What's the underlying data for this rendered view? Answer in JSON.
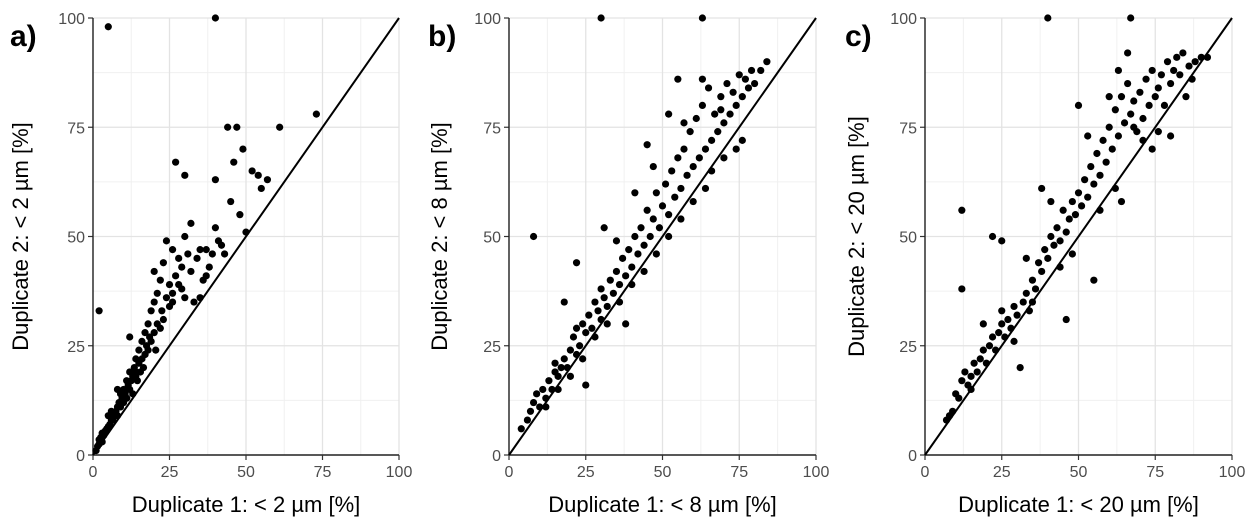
{
  "chart_data": [
    {
      "type": "scatter",
      "panel_label": "a)",
      "xlabel": "Duplicate 1: < 2 µm [%]",
      "ylabel": "Duplicate 2: < 2 µm [%]",
      "xlim": [
        0,
        100
      ],
      "ylim": [
        0,
        100
      ],
      "xticks": [
        "0",
        "25",
        "50",
        "75",
        "100"
      ],
      "yticks": [
        "0",
        "25",
        "50",
        "75",
        "100"
      ],
      "grid": true,
      "reference_line": "1:1",
      "points": [
        [
          1,
          1
        ],
        [
          1.5,
          2
        ],
        [
          2,
          2.5
        ],
        [
          2,
          3.5
        ],
        [
          2.5,
          4
        ],
        [
          3,
          3
        ],
        [
          3,
          5
        ],
        [
          3.5,
          4.5
        ],
        [
          4,
          5.5
        ],
        [
          4.5,
          6
        ],
        [
          5,
          6.5
        ],
        [
          5,
          9
        ],
        [
          5.5,
          7
        ],
        [
          6,
          8
        ],
        [
          6.5,
          8
        ],
        [
          7,
          9
        ],
        [
          7.5,
          10
        ],
        [
          8,
          11
        ],
        [
          8,
          9
        ],
        [
          8.5,
          12
        ],
        [
          9,
          11
        ],
        [
          9.5,
          13
        ],
        [
          10,
          12
        ],
        [
          10,
          15
        ],
        [
          10.5,
          14
        ],
        [
          11,
          13
        ],
        [
          11,
          17
        ],
        [
          11.5,
          16
        ],
        [
          12,
          15
        ],
        [
          12,
          19
        ],
        [
          12.5,
          17
        ],
        [
          13,
          18
        ],
        [
          13,
          14
        ],
        [
          13.5,
          20
        ],
        [
          14,
          19
        ],
        [
          14,
          22
        ],
        [
          14.5,
          17
        ],
        [
          15,
          21
        ],
        [
          15,
          24
        ],
        [
          15.5,
          19
        ],
        [
          16,
          22
        ],
        [
          16,
          26
        ],
        [
          16.5,
          20
        ],
        [
          17,
          23
        ],
        [
          17,
          28
        ],
        [
          17.5,
          25
        ],
        [
          18,
          24
        ],
        [
          18,
          30
        ],
        [
          18.5,
          27
        ],
        [
          19,
          26
        ],
        [
          19,
          33
        ],
        [
          20,
          28
        ],
        [
          20,
          35
        ],
        [
          20.5,
          24
        ],
        [
          21,
          30
        ],
        [
          21,
          37
        ],
        [
          22,
          29
        ],
        [
          22,
          40
        ],
        [
          22.5,
          33
        ],
        [
          23,
          31
        ],
        [
          23,
          44
        ],
        [
          24,
          36
        ],
        [
          24,
          49
        ],
        [
          25,
          34
        ],
        [
          25,
          39
        ],
        [
          26,
          37
        ],
        [
          26,
          47
        ],
        [
          27,
          41
        ],
        [
          28,
          39
        ],
        [
          28,
          45
        ],
        [
          29,
          43
        ],
        [
          30,
          36
        ],
        [
          30,
          50
        ],
        [
          31,
          46
        ],
        [
          32,
          42
        ],
        [
          33,
          35
        ],
        [
          34,
          45
        ],
        [
          35,
          47
        ],
        [
          36,
          40
        ],
        [
          37,
          47
        ],
        [
          38,
          43
        ],
        [
          39,
          46
        ],
        [
          40,
          52
        ],
        [
          41,
          49
        ],
        [
          42,
          48
        ],
        [
          43,
          46
        ],
        [
          45,
          58
        ],
        [
          46,
          67
        ],
        [
          48,
          55
        ],
        [
          50,
          51
        ],
        [
          52,
          65
        ],
        [
          54,
          64
        ],
        [
          55,
          61
        ],
        [
          57,
          63
        ],
        [
          61,
          75
        ],
        [
          73,
          78
        ],
        [
          47,
          75
        ],
        [
          49,
          70
        ],
        [
          44,
          75
        ],
        [
          40,
          63
        ],
        [
          30,
          64
        ],
        [
          27,
          67
        ],
        [
          32,
          53
        ],
        [
          20,
          42
        ],
        [
          2,
          33
        ],
        [
          5,
          98
        ],
        [
          40,
          100
        ],
        [
          12,
          27
        ],
        [
          8,
          15
        ],
        [
          6,
          10
        ],
        [
          9,
          14
        ],
        [
          35,
          36
        ],
        [
          37,
          41
        ],
        [
          26,
          35
        ],
        [
          29,
          38
        ],
        [
          17,
          23
        ],
        [
          14,
          18
        ],
        [
          11,
          13
        ]
      ]
    },
    {
      "type": "scatter",
      "panel_label": "b)",
      "xlabel": "Duplicate 1: < 8 µm [%]",
      "ylabel": "Duplicate 2: < 8 µm [%]",
      "xlim": [
        0,
        100
      ],
      "ylim": [
        0,
        100
      ],
      "xticks": [
        "0",
        "25",
        "50",
        "75",
        "100"
      ],
      "yticks": [
        "0",
        "25",
        "50",
        "75",
        "100"
      ],
      "grid": true,
      "reference_line": "1:1",
      "points": [
        [
          4,
          6
        ],
        [
          6,
          8
        ],
        [
          7,
          10
        ],
        [
          8,
          12
        ],
        [
          9,
          14
        ],
        [
          10,
          11
        ],
        [
          11,
          15
        ],
        [
          12,
          13
        ],
        [
          13,
          17
        ],
        [
          14,
          15
        ],
        [
          15,
          19
        ],
        [
          15,
          21
        ],
        [
          16,
          18
        ],
        [
          17,
          20
        ],
        [
          18,
          22
        ],
        [
          19,
          20
        ],
        [
          20,
          24
        ],
        [
          21,
          27
        ],
        [
          22,
          23
        ],
        [
          22,
          29
        ],
        [
          23,
          25
        ],
        [
          24,
          30
        ],
        [
          25,
          28
        ],
        [
          25,
          16
        ],
        [
          26,
          32
        ],
        [
          27,
          29
        ],
        [
          28,
          35
        ],
        [
          29,
          33
        ],
        [
          30,
          38
        ],
        [
          30,
          31
        ],
        [
          31,
          36
        ],
        [
          32,
          34
        ],
        [
          33,
          40
        ],
        [
          34,
          37
        ],
        [
          35,
          42
        ],
        [
          36,
          39
        ],
        [
          37,
          45
        ],
        [
          38,
          41
        ],
        [
          38,
          30
        ],
        [
          39,
          47
        ],
        [
          40,
          43
        ],
        [
          41,
          50
        ],
        [
          42,
          46
        ],
        [
          43,
          52
        ],
        [
          44,
          48
        ],
        [
          45,
          56
        ],
        [
          46,
          50
        ],
        [
          47,
          54
        ],
        [
          48,
          60
        ],
        [
          49,
          52
        ],
        [
          50,
          57
        ],
        [
          51,
          62
        ],
        [
          52,
          55
        ],
        [
          53,
          65
        ],
        [
          54,
          59
        ],
        [
          55,
          68
        ],
        [
          55,
          86
        ],
        [
          56,
          61
        ],
        [
          57,
          70
        ],
        [
          58,
          64
        ],
        [
          59,
          74
        ],
        [
          60,
          66
        ],
        [
          61,
          77
        ],
        [
          62,
          68
        ],
        [
          63,
          80
        ],
        [
          64,
          70
        ],
        [
          65,
          84
        ],
        [
          66,
          72
        ],
        [
          67,
          78
        ],
        [
          68,
          74
        ],
        [
          69,
          82
        ],
        [
          70,
          76
        ],
        [
          71,
          85
        ],
        [
          72,
          78
        ],
        [
          73,
          83
        ],
        [
          74,
          80
        ],
        [
          75,
          87
        ],
        [
          76,
          82
        ],
        [
          77,
          86
        ],
        [
          78,
          84
        ],
        [
          79,
          88
        ],
        [
          80,
          85
        ],
        [
          82,
          88
        ],
        [
          84,
          90
        ],
        [
          76,
          72
        ],
        [
          70,
          68
        ],
        [
          66,
          65
        ],
        [
          64,
          61
        ],
        [
          60,
          58
        ],
        [
          56,
          54
        ],
        [
          52,
          50
        ],
        [
          48,
          46
        ],
        [
          44,
          42
        ],
        [
          40,
          39
        ],
        [
          36,
          35
        ],
        [
          32,
          30
        ],
        [
          28,
          27
        ],
        [
          24,
          22
        ],
        [
          20,
          18
        ],
        [
          16,
          15
        ],
        [
          12,
          11
        ],
        [
          8,
          50
        ],
        [
          22,
          44
        ],
        [
          31,
          52
        ],
        [
          41,
          60
        ],
        [
          45,
          71
        ],
        [
          52,
          78
        ],
        [
          57,
          76
        ],
        [
          63,
          86
        ],
        [
          30,
          100
        ],
        [
          63,
          100
        ],
        [
          18,
          35
        ],
        [
          35,
          49
        ],
        [
          47,
          66
        ],
        [
          69,
          79
        ],
        [
          74,
          70
        ]
      ]
    },
    {
      "type": "scatter",
      "panel_label": "c)",
      "xlabel": "Duplicate 1: < 20 µm [%]",
      "ylabel": "Duplicate 2: < 20 µm [%]",
      "xlim": [
        0,
        100
      ],
      "ylim": [
        0,
        100
      ],
      "xticks": [
        "0",
        "25",
        "50",
        "75",
        "100"
      ],
      "yticks": [
        "0",
        "25",
        "50",
        "75",
        "100"
      ],
      "grid": true,
      "reference_line": "1:1",
      "points": [
        [
          7,
          8
        ],
        [
          8,
          9
        ],
        [
          9,
          10
        ],
        [
          10,
          14
        ],
        [
          11,
          13
        ],
        [
          12,
          17
        ],
        [
          13,
          19
        ],
        [
          14,
          16
        ],
        [
          15,
          18
        ],
        [
          16,
          21
        ],
        [
          17,
          19
        ],
        [
          18,
          22
        ],
        [
          19,
          24
        ],
        [
          20,
          21
        ],
        [
          21,
          25
        ],
        [
          22,
          27
        ],
        [
          23,
          24
        ],
        [
          24,
          28
        ],
        [
          25,
          30
        ],
        [
          25,
          33
        ],
        [
          26,
          27
        ],
        [
          27,
          31
        ],
        [
          28,
          29
        ],
        [
          29,
          34
        ],
        [
          30,
          32
        ],
        [
          31,
          20
        ],
        [
          32,
          35
        ],
        [
          33,
          37
        ],
        [
          34,
          33
        ],
        [
          35,
          40
        ],
        [
          36,
          38
        ],
        [
          37,
          44
        ],
        [
          38,
          42
        ],
        [
          38,
          61
        ],
        [
          39,
          47
        ],
        [
          40,
          45
        ],
        [
          41,
          50
        ],
        [
          42,
          48
        ],
        [
          43,
          52
        ],
        [
          44,
          49
        ],
        [
          45,
          56
        ],
        [
          46,
          51
        ],
        [
          47,
          54
        ],
        [
          48,
          58
        ],
        [
          49,
          55
        ],
        [
          50,
          60
        ],
        [
          51,
          57
        ],
        [
          52,
          63
        ],
        [
          53,
          59
        ],
        [
          54,
          66
        ],
        [
          55,
          62
        ],
        [
          55,
          40
        ],
        [
          56,
          69
        ],
        [
          57,
          64
        ],
        [
          58,
          72
        ],
        [
          59,
          67
        ],
        [
          60,
          75
        ],
        [
          61,
          70
        ],
        [
          62,
          79
        ],
        [
          63,
          73
        ],
        [
          64,
          82
        ],
        [
          65,
          76
        ],
        [
          66,
          85
        ],
        [
          67,
          78
        ],
        [
          68,
          81
        ],
        [
          69,
          74
        ],
        [
          70,
          83
        ],
        [
          71,
          77
        ],
        [
          72,
          86
        ],
        [
          73,
          80
        ],
        [
          74,
          88
        ],
        [
          75,
          82
        ],
        [
          76,
          84
        ],
        [
          77,
          87
        ],
        [
          78,
          80
        ],
        [
          79,
          90
        ],
        [
          80,
          85
        ],
        [
          81,
          88
        ],
        [
          82,
          91
        ],
        [
          84,
          92
        ],
        [
          86,
          89
        ],
        [
          88,
          90
        ],
        [
          90,
          91
        ],
        [
          92,
          91
        ],
        [
          12,
          56
        ],
        [
          12,
          38
        ],
        [
          22,
          50
        ],
        [
          25,
          49
        ],
        [
          46,
          31
        ],
        [
          50,
          80
        ],
        [
          53,
          73
        ],
        [
          63,
          88
        ],
        [
          66,
          92
        ],
        [
          60,
          82
        ],
        [
          68,
          75
        ],
        [
          71,
          72
        ],
        [
          74,
          70
        ],
        [
          76,
          74
        ],
        [
          80,
          73
        ],
        [
          83,
          87
        ],
        [
          85,
          82
        ],
        [
          87,
          86
        ],
        [
          40,
          100
        ],
        [
          67,
          100
        ],
        [
          19,
          30
        ],
        [
          29,
          26
        ],
        [
          33,
          45
        ],
        [
          41,
          58
        ],
        [
          44,
          43
        ],
        [
          48,
          46
        ],
        [
          57,
          56
        ],
        [
          62,
          61
        ],
        [
          64,
          58
        ],
        [
          35,
          35
        ],
        [
          15,
          15
        ]
      ]
    }
  ]
}
